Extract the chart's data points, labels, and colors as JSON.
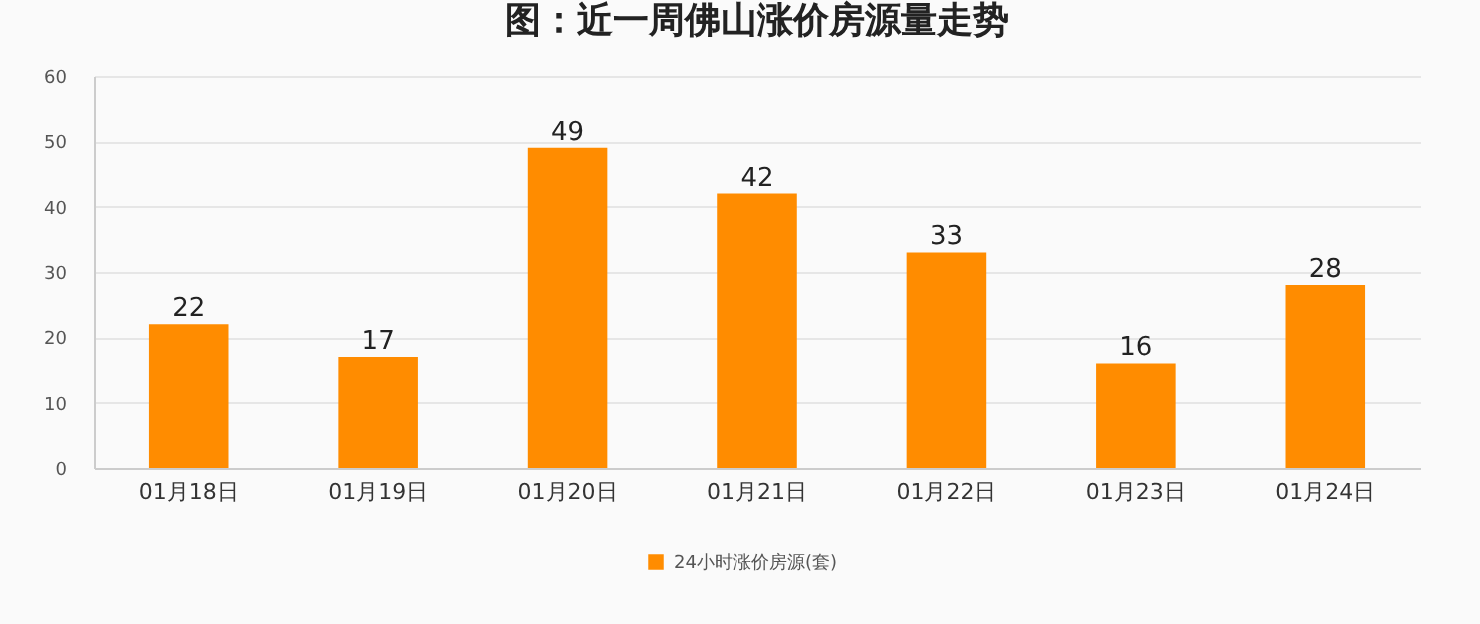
{
  "chart_data": {
    "type": "bar",
    "title": "图：近一周佛山涨价房源量走势",
    "categories": [
      "01月18日",
      "01月19日",
      "01月20日",
      "01月21日",
      "01月22日",
      "01月23日",
      "01月24日"
    ],
    "series": [
      {
        "name": "24小时涨价房源(套)",
        "color": "#ff8c00",
        "values": [
          22,
          17,
          49,
          42,
          33,
          16,
          28
        ]
      }
    ],
    "ylim": [
      0,
      60
    ],
    "yticks": [
      0,
      10,
      20,
      30,
      40,
      50,
      60
    ],
    "grid": "y",
    "legend": "bottom",
    "data_labels": true
  }
}
